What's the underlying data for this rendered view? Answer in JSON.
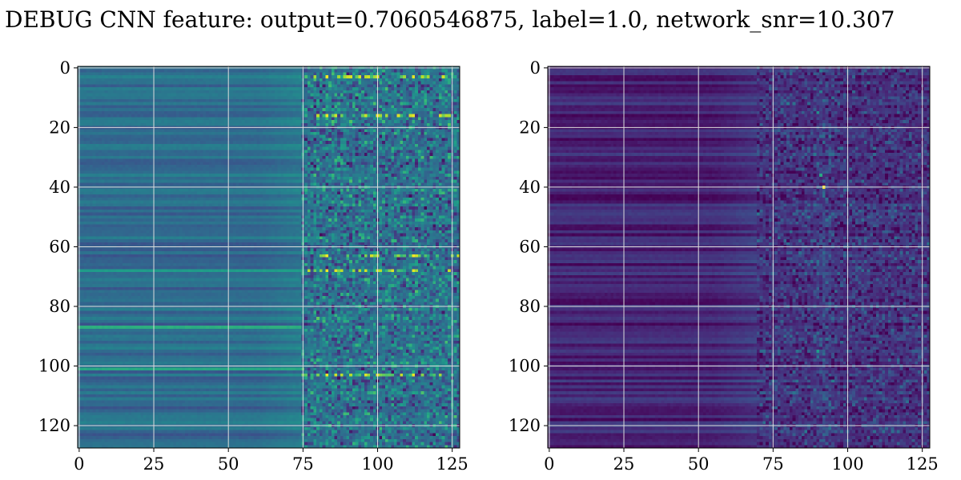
{
  "title": "DEBUG CNN feature: output=0.7060546875, label=1.0, network_snr=10.307",
  "colormap": "viridis",
  "colors": {
    "grid": "#dddddd",
    "viridis": [
      "#440154",
      "#482878",
      "#3e4989",
      "#31688e",
      "#26828e",
      "#1f9e89",
      "#35b779",
      "#6ece58",
      "#b5de2b",
      "#fde725"
    ]
  },
  "chart_data": [
    {
      "type": "heatmap",
      "name": "panel-left",
      "rows": 128,
      "cols": 128,
      "xlim": [
        -0.5,
        127.5
      ],
      "ylim": [
        127.5,
        -0.5
      ],
      "xticks": [
        0,
        25,
        50,
        75,
        100,
        125
      ],
      "yticks": [
        0,
        20,
        40,
        60,
        80,
        100,
        120
      ],
      "grid": true,
      "pattern": {
        "transition_column": 75,
        "left_region_level": 0.35,
        "right_region_level": 0.38,
        "right_region_noise": 0.35,
        "bright_rows": [
          68,
          87,
          101
        ],
        "bright_row_levels": [
          0.55,
          0.62,
          0.6
        ],
        "hot_rows": [
          3,
          16,
          63,
          68,
          103
        ],
        "hot_spot_columns": [
          83,
          100,
          112
        ]
      }
    },
    {
      "type": "heatmap",
      "name": "panel-right",
      "rows": 128,
      "cols": 128,
      "xlim": [
        -0.5,
        127.5
      ],
      "ylim": [
        127.5,
        -0.5
      ],
      "xticks": [
        0,
        25,
        50,
        75,
        100,
        125
      ],
      "yticks": [
        0,
        20,
        40,
        60,
        80,
        100,
        120
      ],
      "grid": true,
      "pattern": {
        "transition_column": 70,
        "left_region_level": 0.1,
        "right_region_level": 0.15,
        "right_region_noise": 0.22,
        "bright_column": 92,
        "peak": {
          "row": 40,
          "col": 92,
          "value": 1.0
        },
        "secondary_peaks": [
          {
            "row": 36,
            "col": 91,
            "value": 0.6
          },
          {
            "row": 95,
            "col": 90,
            "value": 0.55
          },
          {
            "row": 15,
            "col": 90,
            "value": 0.5
          }
        ]
      }
    }
  ]
}
